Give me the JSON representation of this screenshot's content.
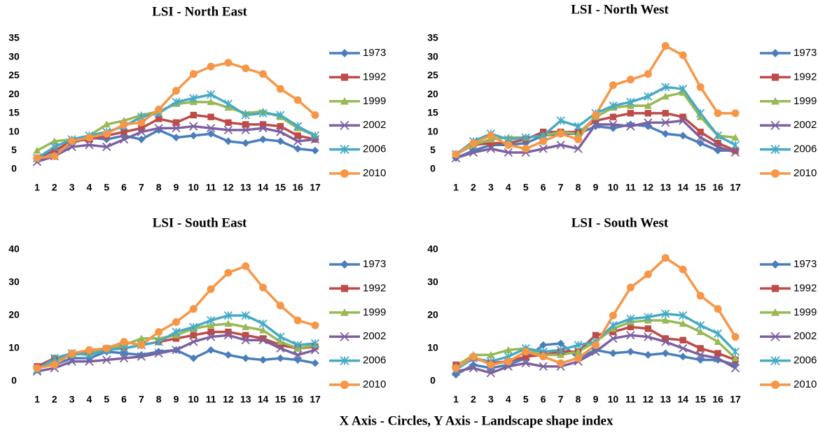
{
  "caption": "X Axis - Circles, Y Axis - Landscape shape index",
  "chart_data": [
    {
      "type": "line",
      "title": "LSI - North East",
      "categories": [
        "1",
        "2",
        "3",
        "4",
        "5",
        "6",
        "7",
        "8",
        "9",
        "10",
        "11",
        "12",
        "13",
        "14",
        "15",
        "16",
        "17"
      ],
      "ylim": [
        0,
        35
      ],
      "yticks": [
        0,
        5,
        10,
        15,
        20,
        25,
        30,
        35
      ],
      "series": [
        {
          "name": "1973",
          "color": "#4a7ebb",
          "marker": "diamond",
          "values": [
            2.5,
            4,
            7,
            8.5,
            8,
            9,
            8,
            10.5,
            8.5,
            9,
            9.5,
            7.5,
            7,
            8,
            7.5,
            5.5,
            5
          ]
        },
        {
          "name": "1992",
          "color": "#be4b48",
          "marker": "square",
          "values": [
            3,
            5,
            7.5,
            8,
            9,
            10,
            11,
            13.5,
            12.5,
            14.5,
            14,
            12.5,
            12,
            12,
            11.5,
            9,
            8
          ]
        },
        {
          "name": "1999",
          "color": "#98b954",
          "marker": "triangle",
          "values": [
            5,
            7.5,
            8,
            9,
            12,
            13,
            14.5,
            15.5,
            17.5,
            18,
            18,
            16.5,
            15,
            15.5,
            14,
            11,
            9
          ]
        },
        {
          "name": "2002",
          "color": "#7d60a0",
          "marker": "x",
          "values": [
            2,
            3.5,
            6,
            6.5,
            6,
            8,
            10,
            11,
            11,
            11.5,
            11,
            10.5,
            10.5,
            11,
            10,
            7.5,
            8
          ]
        },
        {
          "name": "2006",
          "color": "#46aac5",
          "marker": "star",
          "values": [
            3,
            6,
            8,
            9,
            10,
            11.5,
            14,
            15,
            18,
            19,
            20,
            17.5,
            14.5,
            15,
            14.5,
            11.5,
            9
          ]
        },
        {
          "name": "2010",
          "color": "#f79646",
          "marker": "circle",
          "values": [
            3,
            3.5,
            7.5,
            8.5,
            9.5,
            12,
            12.5,
            16,
            21,
            25.5,
            27.5,
            28.5,
            27,
            25.5,
            21.5,
            18.5,
            14.5
          ]
        }
      ]
    },
    {
      "type": "line",
      "title": "LSI - North West",
      "categories": [
        "1",
        "2",
        "3",
        "4",
        "5",
        "6",
        "7",
        "8",
        "9",
        "10",
        "11",
        "12",
        "13",
        "14",
        "15",
        "16",
        "17"
      ],
      "ylim": [
        0,
        35
      ],
      "yticks": [
        0,
        5,
        10,
        15,
        20,
        25,
        30,
        35
      ],
      "series": [
        {
          "name": "1973",
          "color": "#4a7ebb",
          "marker": "diamond",
          "values": [
            3,
            5,
            6.5,
            6.5,
            7,
            9,
            9.5,
            9.5,
            11.5,
            11,
            12,
            11.5,
            9.5,
            9,
            7,
            5,
            5
          ]
        },
        {
          "name": "1992",
          "color": "#be4b48",
          "marker": "square",
          "values": [
            4,
            6.5,
            7,
            7,
            8,
            10,
            10,
            10,
            13,
            14,
            15,
            15,
            15,
            14,
            10,
            7,
            5
          ]
        },
        {
          "name": "1999",
          "color": "#98b954",
          "marker": "triangle",
          "values": [
            4,
            6.5,
            8,
            8.5,
            8.5,
            9,
            10,
            9.5,
            14,
            16.5,
            17,
            17,
            19.5,
            20.5,
            14,
            9,
            8.5
          ]
        },
        {
          "name": "2002",
          "color": "#7d60a0",
          "marker": "x",
          "values": [
            3,
            4.5,
            5.5,
            4.5,
            4.5,
            5.5,
            6.5,
            5.5,
            12,
            12,
            11.5,
            12.5,
            12.5,
            13,
            8.5,
            6,
            4.5
          ]
        },
        {
          "name": "2006",
          "color": "#46aac5",
          "marker": "star",
          "values": [
            4,
            7.5,
            9.5,
            8,
            8.5,
            9,
            13,
            11.5,
            15,
            17,
            18,
            19.5,
            22,
            21.5,
            15,
            9,
            6.5
          ]
        },
        {
          "name": "2010",
          "color": "#f79646",
          "marker": "circle",
          "values": [
            4,
            7,
            9,
            6.5,
            5.5,
            7.5,
            9.5,
            8,
            14.5,
            22.5,
            24,
            25.5,
            33,
            30.5,
            22,
            15,
            15
          ]
        }
      ]
    },
    {
      "type": "line",
      "title": "LSI - South East",
      "categories": [
        "1",
        "2",
        "3",
        "4",
        "5",
        "6",
        "7",
        "8",
        "9",
        "10",
        "11",
        "12",
        "13",
        "14",
        "15",
        "16",
        "17"
      ],
      "ylim": [
        0,
        40
      ],
      "yticks": [
        0,
        10,
        20,
        30,
        40
      ],
      "series": [
        {
          "name": "1973",
          "color": "#4a7ebb",
          "marker": "diamond",
          "values": [
            4.5,
            5,
            7,
            7,
            9,
            8.5,
            8,
            9,
            9.5,
            7,
            9.5,
            8,
            7,
            6.5,
            7,
            6.5,
            5.5
          ]
        },
        {
          "name": "1992",
          "color": "#be4b48",
          "marker": "square",
          "values": [
            4.5,
            7,
            8,
            9,
            10,
            10,
            11,
            12,
            13,
            14,
            15,
            15,
            14,
            13,
            11,
            10,
            10.5
          ]
        },
        {
          "name": "1999",
          "color": "#98b954",
          "marker": "triangle",
          "values": [
            4,
            6,
            8,
            8.5,
            10,
            11,
            13,
            13,
            14,
            16,
            17,
            17.5,
            16.5,
            15.5,
            12,
            10,
            11
          ]
        },
        {
          "name": "2002",
          "color": "#7d60a0",
          "marker": "x",
          "values": [
            3,
            4,
            6,
            6,
            6.5,
            7,
            7.5,
            8.5,
            9.5,
            12,
            13.5,
            14,
            12.5,
            12.5,
            10,
            8,
            9.5
          ]
        },
        {
          "name": "2006",
          "color": "#46aac5",
          "marker": "star",
          "values": [
            3.5,
            7,
            8.5,
            8,
            9.5,
            10,
            11,
            12,
            15,
            16.5,
            18.5,
            20,
            20,
            17.5,
            13.5,
            11,
            11.5
          ]
        },
        {
          "name": "2010",
          "color": "#f79646",
          "marker": "circle",
          "values": [
            4,
            5,
            8.5,
            9.5,
            10,
            12,
            11,
            15,
            18,
            22,
            28,
            33,
            35,
            28.5,
            23,
            18.5,
            17
          ]
        }
      ]
    },
    {
      "type": "line",
      "title": "LSI - South West",
      "categories": [
        "1",
        "2",
        "3",
        "4",
        "5",
        "6",
        "7",
        "8",
        "9",
        "10",
        "11",
        "12",
        "13",
        "14",
        "15",
        "16",
        "17"
      ],
      "ylim": [
        0,
        40
      ],
      "yticks": [
        0,
        10,
        20,
        30,
        40
      ],
      "series": [
        {
          "name": "1973",
          "color": "#4a7ebb",
          "marker": "diamond",
          "values": [
            2,
            5,
            4,
            5,
            7,
            11,
            11.5,
            7,
            9.5,
            8.5,
            9,
            8,
            8.5,
            7.5,
            6.5,
            6.5,
            5
          ]
        },
        {
          "name": "1992",
          "color": "#be4b48",
          "marker": "square",
          "values": [
            5,
            7,
            5.5,
            6,
            7.5,
            8,
            9,
            9,
            14,
            15,
            16.5,
            16,
            13,
            12.5,
            10,
            8.5,
            6.5
          ]
        },
        {
          "name": "1999",
          "color": "#98b954",
          "marker": "triangle",
          "values": [
            4.5,
            8,
            8,
            9.5,
            10,
            8,
            8,
            9,
            12,
            16,
            18,
            18.5,
            18.5,
            17.5,
            15,
            12,
            7
          ]
        },
        {
          "name": "2002",
          "color": "#7d60a0",
          "marker": "x",
          "values": [
            3,
            4,
            2.5,
            4.5,
            5.5,
            4.5,
            4.5,
            6,
            9,
            13,
            14,
            13.5,
            12,
            10,
            8,
            7,
            4
          ]
        },
        {
          "name": "2006",
          "color": "#46aac5",
          "marker": "star",
          "values": [
            3.5,
            7,
            6,
            7.5,
            10,
            9,
            9.5,
            11,
            12,
            17,
            19,
            19.5,
            20.5,
            20,
            17,
            14.5,
            9
          ]
        },
        {
          "name": "2010",
          "color": "#f79646",
          "marker": "circle",
          "values": [
            4,
            7.5,
            5,
            6,
            9,
            7.5,
            5.5,
            7,
            11,
            20,
            28.5,
            32.5,
            37.5,
            34,
            26,
            22,
            13.5
          ]
        }
      ]
    }
  ]
}
